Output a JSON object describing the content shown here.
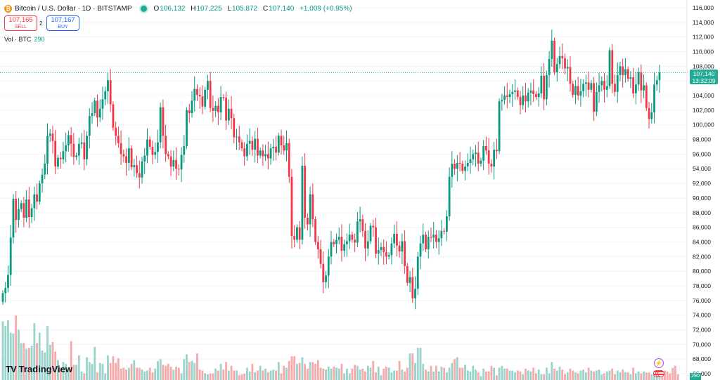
{
  "header": {
    "symbol_title": "Bitcoin / U.S. Dollar · 1D · BITSTAMP",
    "coin_glyph": "₿",
    "ohlc": {
      "o_label": "O",
      "o": "106,132",
      "h_label": "H",
      "h": "107,225",
      "l_label": "L",
      "l": "105,872",
      "c_label": "C",
      "c": "107,140",
      "change": "+1,009 (+0.95%)"
    }
  },
  "trade": {
    "sell_price": "107,165",
    "sell_label": "SELL",
    "spread": "2",
    "buy_price": "107,167",
    "buy_label": "BUY"
  },
  "volume_indicator": {
    "label": "Vol · BTC",
    "value": "290"
  },
  "price_axis": {
    "last_price": "107,140",
    "countdown": "13:32:09",
    "volume_tag": "290",
    "ticks": [
      "116,000",
      "114,000",
      "112,000",
      "110,000",
      "108,000",
      "106,000",
      "104,000",
      "102,000",
      "100,000",
      "98,000",
      "96,000",
      "94,000",
      "92,000",
      "90,000",
      "88,000",
      "86,000",
      "84,000",
      "82,000",
      "80,000",
      "78,000",
      "76,000",
      "74,000",
      "72,000",
      "70,000",
      "68,000",
      "66,000"
    ]
  },
  "brand": {
    "name": "TradingView",
    "mark": "TV"
  },
  "colors": {
    "up": "#089981",
    "down": "#f23645",
    "vol_up": "#9ad3cb",
    "vol_down": "#f6a9a8",
    "last_line": "#22ab94"
  },
  "chart_data": {
    "type": "candlestick",
    "y_range": [
      66000,
      116600
    ],
    "closes": [
      77000,
      77700,
      79500,
      84600,
      89900,
      87000,
      88500,
      89300,
      87300,
      89800,
      87400,
      88600,
      90500,
      89500,
      92000,
      93200,
      94700,
      98500,
      98800,
      97800,
      94300,
      95500,
      95300,
      96400,
      97200,
      98600,
      97400,
      95600,
      95800,
      97400,
      97600,
      95300,
      98500,
      101200,
      101600,
      103300,
      101000,
      102200,
      103500,
      104600,
      106100,
      102800,
      99600,
      98500,
      97500,
      96000,
      95700,
      94800,
      96800,
      94200,
      94500,
      93400,
      92800,
      95000,
      95800,
      98000,
      97000,
      95900,
      96300,
      97600,
      102400,
      98500,
      96000,
      95700,
      94300,
      95200,
      94000,
      93900,
      95900,
      97100,
      102000,
      101600,
      103300,
      104900,
      104100,
      103900,
      102500,
      104800,
      106000,
      102300,
      101900,
      102600,
      101700,
      103800,
      103700,
      100600,
      102200,
      100900,
      98300,
      98400,
      97600,
      96800,
      95700,
      97400,
      97800,
      96600,
      98100,
      95800,
      96500,
      95700,
      96000,
      95400,
      96800,
      97000,
      96200,
      98500,
      97200,
      96500,
      97500,
      92900,
      84800,
      84300,
      86000,
      84300,
      94400,
      87300,
      86400,
      90500,
      87100,
      84000,
      83000,
      81000,
      78500,
      79400,
      82000,
      84000,
      83700,
      84300,
      84700,
      82800,
      83700,
      84100,
      85000,
      84300,
      83900,
      86800,
      87100,
      85500,
      83100,
      84100,
      86200,
      86000,
      82400,
      82900,
      83300,
      82600,
      82000,
      82200,
      83800,
      85100,
      83500,
      82700,
      84100,
      80700,
      78400,
      79200,
      76300,
      77600,
      82000,
      83800,
      85000,
      83000,
      84700,
      84600,
      85000,
      84000,
      84500,
      85500,
      85400,
      87500,
      92900,
      94700,
      94000,
      94800,
      94700,
      93700,
      94300,
      94800,
      95300,
      96000,
      96200,
      94700,
      95100,
      97100,
      96500,
      94700,
      94300,
      96600,
      96400,
      103200,
      103400,
      104000,
      103800,
      104200,
      104500,
      104700,
      103800,
      102700,
      104000,
      103200,
      104400,
      104700,
      104200,
      103800,
      104300,
      106700,
      103500,
      106800,
      109000,
      111500,
      107200,
      108300,
      109400,
      109100,
      107700,
      107900,
      105600,
      104100,
      105300,
      104000,
      104600,
      105600,
      105800,
      104800,
      105700,
      101800,
      104500,
      105400,
      106000,
      104800,
      105300,
      110200,
      105600,
      104500,
      106800,
      108000,
      106800,
      107600,
      106300,
      106500,
      104300,
      105500,
      107200,
      104700,
      105400,
      102300,
      100800,
      101700,
      105500,
      106100,
      107140
    ],
    "volumes": [
      62,
      57,
      63,
      50,
      49,
      68,
      53,
      39,
      39,
      33,
      34,
      36,
      60,
      39,
      50,
      31,
      29,
      57,
      37,
      40,
      30,
      21,
      13,
      19,
      17,
      12,
      41,
      16,
      16,
      26,
      9,
      7,
      24,
      19,
      17,
      35,
      8,
      18,
      17,
      7,
      26,
      18,
      25,
      18,
      23,
      12,
      13,
      11,
      13,
      17,
      21,
      13,
      13,
      11,
      9,
      10,
      13,
      8,
      12,
      20,
      22,
      16,
      15,
      17,
      14,
      11,
      14,
      13,
      7,
      22,
      27,
      19,
      20,
      18,
      28,
      11,
      10,
      7,
      6,
      7,
      7,
      12,
      10,
      17,
      11,
      19,
      10,
      15,
      10,
      10,
      5,
      6,
      7,
      13,
      9,
      17,
      8,
      10,
      15,
      10,
      12,
      8,
      10,
      11,
      10,
      19,
      7,
      15,
      13,
      20,
      25,
      25,
      17,
      18,
      24,
      17,
      12,
      19,
      19,
      17,
      21,
      13,
      12,
      11,
      14,
      12,
      14,
      13,
      12,
      17,
      7,
      12,
      7,
      12,
      16,
      15,
      11,
      12,
      9,
      15,
      13,
      20,
      8,
      14,
      5,
      12,
      14,
      13,
      8,
      10,
      10,
      20,
      11,
      9,
      13,
      28,
      28,
      18,
      34,
      34,
      17,
      11,
      9,
      15,
      9,
      15,
      9,
      14,
      13,
      8,
      13,
      18,
      22,
      24,
      13,
      13,
      16,
      10,
      9,
      15,
      11,
      8,
      4,
      12,
      9,
      9,
      15,
      13,
      5,
      13,
      15,
      12,
      12,
      10,
      10,
      8,
      10,
      9,
      6,
      12,
      10,
      9,
      13,
      7,
      11,
      6,
      6,
      13,
      7,
      19,
      12,
      10,
      14,
      11,
      6,
      8,
      12,
      10,
      8,
      7,
      10,
      11,
      8,
      13,
      10,
      9,
      10,
      11,
      6,
      7,
      9,
      10,
      12,
      6,
      10,
      8,
      11,
      8,
      8,
      6,
      13,
      7,
      9,
      7,
      9,
      8,
      8,
      6,
      10,
      7,
      6,
      7,
      10,
      9,
      7,
      13,
      15,
      6
    ]
  }
}
